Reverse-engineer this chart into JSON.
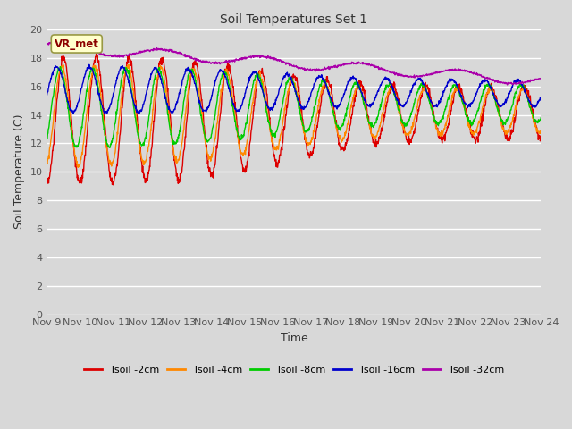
{
  "title": "Soil Temperatures Set 1",
  "xlabel": "Time",
  "ylabel": "Soil Temperature (C)",
  "ylim": [
    0,
    20
  ],
  "yticks": [
    0,
    2,
    4,
    6,
    8,
    10,
    12,
    14,
    16,
    18,
    20
  ],
  "x_tick_days": [
    9,
    10,
    11,
    12,
    13,
    14,
    15,
    16,
    17,
    18,
    19,
    20,
    21,
    22,
    23,
    24
  ],
  "annotation_text": "VR_met",
  "annotation_color": "#8B0000",
  "annotation_bg": "#ffffcc",
  "annotation_edge": "#999944",
  "series_colors": [
    "#dd0000",
    "#ff8800",
    "#00cc00",
    "#0000cc",
    "#aa00aa"
  ],
  "series_labels": [
    "Tsoil -2cm",
    "Tsoil -4cm",
    "Tsoil -8cm",
    "Tsoil -16cm",
    "Tsoil -32cm"
  ],
  "background_color": "#d8d8d8",
  "plot_bg_color": "#d8d8d8",
  "grid_color": "#ffffff",
  "figsize": [
    6.4,
    4.8
  ],
  "dpi": 100
}
